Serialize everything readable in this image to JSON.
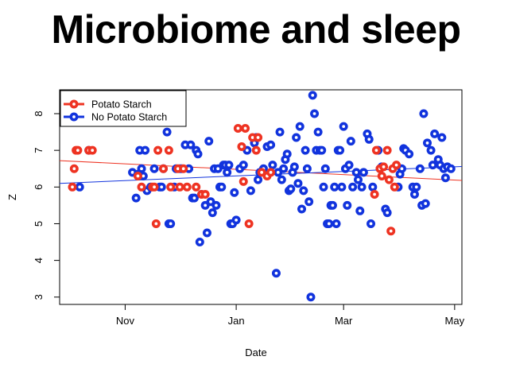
{
  "chart_data": {
    "type": "scatter",
    "title": "Microbiome and sleep",
    "xlabel": "Date",
    "ylabel": "Z",
    "x_axis": {
      "range": [
        "2013-09-26",
        "2014-05-05"
      ],
      "ticks": [
        {
          "date": "2013-11-01",
          "label": "Nov"
        },
        {
          "date": "2014-01-01",
          "label": "Jan"
        },
        {
          "date": "2014-03-01",
          "label": "Mar"
        },
        {
          "date": "2014-05-01",
          "label": "May"
        }
      ]
    },
    "y_axis": {
      "range": [
        2.8,
        8.65
      ],
      "ticks": [
        3,
        4,
        5,
        6,
        7,
        8
      ]
    },
    "grid": false,
    "legend": {
      "position": "top-left"
    },
    "series": [
      {
        "name": "Potato Starch",
        "color": "#ee3322",
        "trend": {
          "start": [
            "2013-09-26",
            6.72
          ],
          "end": [
            "2014-05-05",
            6.18
          ]
        },
        "points": [
          [
            "2013-10-03",
            6.0
          ],
          [
            "2013-10-04",
            6.5
          ],
          [
            "2013-10-05",
            7.0
          ],
          [
            "2013-10-06",
            7.0
          ],
          [
            "2013-10-12",
            7.0
          ],
          [
            "2013-10-14",
            7.0
          ],
          [
            "2013-11-08",
            6.3
          ],
          [
            "2013-11-10",
            6.0
          ],
          [
            "2013-11-16",
            6.0
          ],
          [
            "2013-11-17",
            6.0
          ],
          [
            "2013-11-18",
            5.0
          ],
          [
            "2013-11-19",
            7.0
          ],
          [
            "2013-11-22",
            6.5
          ],
          [
            "2013-11-25",
            7.0
          ],
          [
            "2013-11-26",
            6.0
          ],
          [
            "2013-11-30",
            6.5
          ],
          [
            "2013-12-01",
            6.0
          ],
          [
            "2013-12-03",
            6.5
          ],
          [
            "2013-12-05",
            6.0
          ],
          [
            "2013-12-10",
            6.0
          ],
          [
            "2013-12-13",
            5.8
          ],
          [
            "2013-12-15",
            5.8
          ],
          [
            "2014-01-02",
            7.6
          ],
          [
            "2014-01-04",
            7.1
          ],
          [
            "2014-01-05",
            6.15
          ],
          [
            "2014-01-06",
            7.6
          ],
          [
            "2014-01-08",
            5.0
          ],
          [
            "2014-01-10",
            7.35
          ],
          [
            "2014-01-12",
            7.0
          ],
          [
            "2014-01-13",
            7.35
          ],
          [
            "2014-01-15",
            6.4
          ],
          [
            "2014-01-18",
            6.3
          ],
          [
            "2014-01-20",
            6.4
          ],
          [
            "2014-03-18",
            5.8
          ],
          [
            "2014-03-19",
            7.0
          ],
          [
            "2014-03-21",
            6.5
          ],
          [
            "2014-03-22",
            6.3
          ],
          [
            "2014-03-23",
            6.55
          ],
          [
            "2014-03-25",
            7.0
          ],
          [
            "2014-03-26",
            6.2
          ],
          [
            "2014-03-27",
            4.8
          ],
          [
            "2014-03-28",
            6.5
          ],
          [
            "2014-03-29",
            6.0
          ],
          [
            "2014-03-30",
            6.6
          ]
        ]
      },
      {
        "name": "No Potato Starch",
        "color": "#1133dd",
        "trend": {
          "start": [
            "2013-09-26",
            6.1
          ],
          "end": [
            "2014-05-05",
            6.56
          ]
        },
        "points": [
          [
            "2013-10-07",
            6.0
          ],
          [
            "2013-10-12",
            7.0
          ],
          [
            "2013-11-05",
            6.4
          ],
          [
            "2013-11-07",
            5.7
          ],
          [
            "2013-11-08",
            6.35
          ],
          [
            "2013-11-09",
            7.0
          ],
          [
            "2013-11-10",
            6.5
          ],
          [
            "2013-11-11",
            6.3
          ],
          [
            "2013-11-12",
            7.0
          ],
          [
            "2013-11-13",
            5.9
          ],
          [
            "2013-11-15",
            6.0
          ],
          [
            "2013-11-17",
            6.5
          ],
          [
            "2013-11-20",
            6.0
          ],
          [
            "2013-11-21",
            6.0
          ],
          [
            "2013-11-22",
            6.5
          ],
          [
            "2013-11-24",
            7.5
          ],
          [
            "2013-11-25",
            5.0
          ],
          [
            "2013-11-26",
            5.0
          ],
          [
            "2013-11-28",
            6.0
          ],
          [
            "2013-11-29",
            6.5
          ],
          [
            "2013-12-01",
            6.5
          ],
          [
            "2013-12-02",
            6.5
          ],
          [
            "2013-12-04",
            7.15
          ],
          [
            "2013-12-06",
            6.5
          ],
          [
            "2013-12-07",
            7.15
          ],
          [
            "2013-12-08",
            5.7
          ],
          [
            "2013-12-09",
            5.7
          ],
          [
            "2013-12-10",
            7.0
          ],
          [
            "2013-12-11",
            6.9
          ],
          [
            "2013-12-12",
            4.5
          ],
          [
            "2013-12-13",
            5.8
          ],
          [
            "2013-12-15",
            5.5
          ],
          [
            "2013-12-16",
            4.75
          ],
          [
            "2013-12-17",
            7.25
          ],
          [
            "2013-12-18",
            5.6
          ],
          [
            "2013-12-19",
            5.3
          ],
          [
            "2013-12-20",
            6.5
          ],
          [
            "2013-12-21",
            5.5
          ],
          [
            "2013-12-22",
            6.5
          ],
          [
            "2013-12-23",
            6.0
          ],
          [
            "2013-12-24",
            6.0
          ],
          [
            "2013-12-25",
            6.6
          ],
          [
            "2013-12-26",
            6.6
          ],
          [
            "2013-12-27",
            6.4
          ],
          [
            "2013-12-28",
            6.6
          ],
          [
            "2013-12-29",
            5.0
          ],
          [
            "2013-12-30",
            5.0
          ],
          [
            "2013-12-31",
            5.85
          ],
          [
            "2014-01-01",
            5.1
          ],
          [
            "2014-01-03",
            6.5
          ],
          [
            "2014-01-05",
            6.6
          ],
          [
            "2014-01-07",
            7.0
          ],
          [
            "2014-01-09",
            5.9
          ],
          [
            "2014-01-11",
            7.2
          ],
          [
            "2014-01-12",
            7.35
          ],
          [
            "2014-01-13",
            6.2
          ],
          [
            "2014-01-14",
            6.4
          ],
          [
            "2014-01-16",
            6.5
          ],
          [
            "2014-01-18",
            7.1
          ],
          [
            "2014-01-20",
            7.15
          ],
          [
            "2014-01-21",
            6.6
          ],
          [
            "2014-01-23",
            3.65
          ],
          [
            "2014-01-24",
            6.4
          ],
          [
            "2014-01-25",
            7.5
          ],
          [
            "2014-01-26",
            6.2
          ],
          [
            "2014-01-27",
            6.5
          ],
          [
            "2014-01-28",
            6.75
          ],
          [
            "2014-01-29",
            6.9
          ],
          [
            "2014-01-30",
            5.9
          ],
          [
            "2014-01-31",
            5.95
          ],
          [
            "2014-02-01",
            6.4
          ],
          [
            "2014-02-02",
            6.55
          ],
          [
            "2014-02-03",
            7.35
          ],
          [
            "2014-02-04",
            6.1
          ],
          [
            "2014-02-05",
            7.65
          ],
          [
            "2014-02-06",
            5.4
          ],
          [
            "2014-02-07",
            5.9
          ],
          [
            "2014-02-08",
            7.0
          ],
          [
            "2014-02-09",
            6.5
          ],
          [
            "2014-02-10",
            5.6
          ],
          [
            "2014-02-11",
            3.0
          ],
          [
            "2014-02-12",
            8.5
          ],
          [
            "2014-02-13",
            8.0
          ],
          [
            "2014-02-14",
            7.0
          ],
          [
            "2014-02-15",
            7.5
          ],
          [
            "2014-02-16",
            7.0
          ],
          [
            "2014-02-17",
            7.0
          ],
          [
            "2014-02-18",
            6.0
          ],
          [
            "2014-02-19",
            6.5
          ],
          [
            "2014-02-20",
            5.0
          ],
          [
            "2014-02-21",
            5.0
          ],
          [
            "2014-02-22",
            5.5
          ],
          [
            "2014-02-23",
            5.5
          ],
          [
            "2014-02-24",
            6.0
          ],
          [
            "2014-02-25",
            5.0
          ],
          [
            "2014-02-26",
            7.0
          ],
          [
            "2014-02-27",
            7.0
          ],
          [
            "2014-02-28",
            6.0
          ],
          [
            "2014-03-01",
            7.65
          ],
          [
            "2014-03-02",
            6.5
          ],
          [
            "2014-03-03",
            5.5
          ],
          [
            "2014-03-04",
            6.6
          ],
          [
            "2014-03-05",
            7.25
          ],
          [
            "2014-03-06",
            6.0
          ],
          [
            "2014-03-08",
            6.4
          ],
          [
            "2014-03-09",
            6.2
          ],
          [
            "2014-03-10",
            5.35
          ],
          [
            "2014-03-11",
            6.0
          ],
          [
            "2014-03-12",
            6.4
          ],
          [
            "2014-03-14",
            7.45
          ],
          [
            "2014-03-15",
            7.3
          ],
          [
            "2014-03-16",
            5.0
          ],
          [
            "2014-03-17",
            6.0
          ],
          [
            "2014-03-20",
            7.0
          ],
          [
            "2014-03-21",
            6.5
          ],
          [
            "2014-03-22",
            6.55
          ],
          [
            "2014-03-24",
            5.4
          ],
          [
            "2014-03-25",
            5.3
          ],
          [
            "2014-03-31",
            6.0
          ],
          [
            "2014-04-01",
            6.35
          ],
          [
            "2014-04-02",
            6.5
          ],
          [
            "2014-04-03",
            7.05
          ],
          [
            "2014-04-04",
            7.0
          ],
          [
            "2014-04-06",
            6.9
          ],
          [
            "2014-04-08",
            6.0
          ],
          [
            "2014-04-09",
            5.8
          ],
          [
            "2014-04-10",
            6.0
          ],
          [
            "2014-04-12",
            6.5
          ],
          [
            "2014-04-13",
            5.5
          ],
          [
            "2014-04-14",
            8.0
          ],
          [
            "2014-04-15",
            5.55
          ],
          [
            "2014-04-16",
            7.2
          ],
          [
            "2014-04-18",
            7.0
          ],
          [
            "2014-04-19",
            6.6
          ],
          [
            "2014-04-20",
            7.45
          ],
          [
            "2014-04-22",
            6.75
          ],
          [
            "2014-04-23",
            6.6
          ],
          [
            "2014-04-24",
            7.35
          ],
          [
            "2014-04-25",
            6.5
          ],
          [
            "2014-04-26",
            6.25
          ],
          [
            "2014-04-27",
            6.55
          ],
          [
            "2014-04-29",
            6.5
          ]
        ]
      }
    ]
  }
}
